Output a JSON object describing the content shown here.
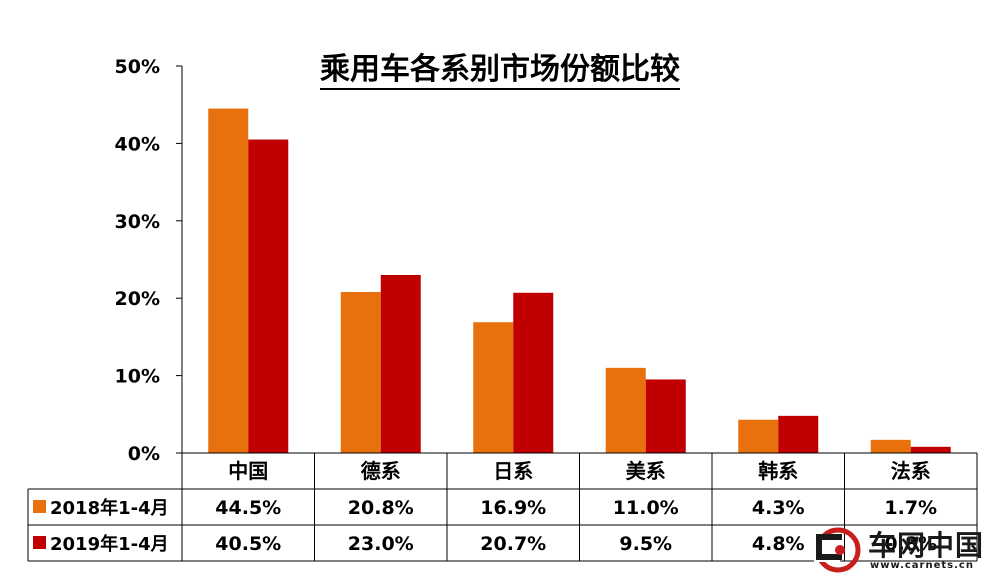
{
  "chart_data": {
    "type": "bar",
    "title": "乘用车各系别市场份额比较",
    "categories": [
      "中国",
      "德系",
      "日系",
      "美系",
      "韩系",
      "法系"
    ],
    "series": [
      {
        "name": "2018年1-4月",
        "values": [
          44.5,
          20.8,
          16.9,
          11.0,
          4.3,
          1.7
        ],
        "labels": [
          "44.5%",
          "20.8%",
          "16.9%",
          "11.0%",
          "4.3%",
          "1.7%"
        ],
        "color": "#E8710E"
      },
      {
        "name": "2019年1-4月",
        "values": [
          40.5,
          23.0,
          20.7,
          9.5,
          4.8,
          0.8
        ],
        "labels": [
          "40.5%",
          "23.0%",
          "20.7%",
          "9.5%",
          "4.8%",
          "0.8%"
        ],
        "color": "#C00000"
      }
    ],
    "yticks": [
      "0%",
      "10%",
      "20%",
      "30%",
      "40%",
      "50%"
    ],
    "ylim": [
      0,
      50
    ],
    "legend_placement": "data table below plot"
  },
  "watermark": {
    "text": "车网中国",
    "url": "www.carnets.cn"
  }
}
